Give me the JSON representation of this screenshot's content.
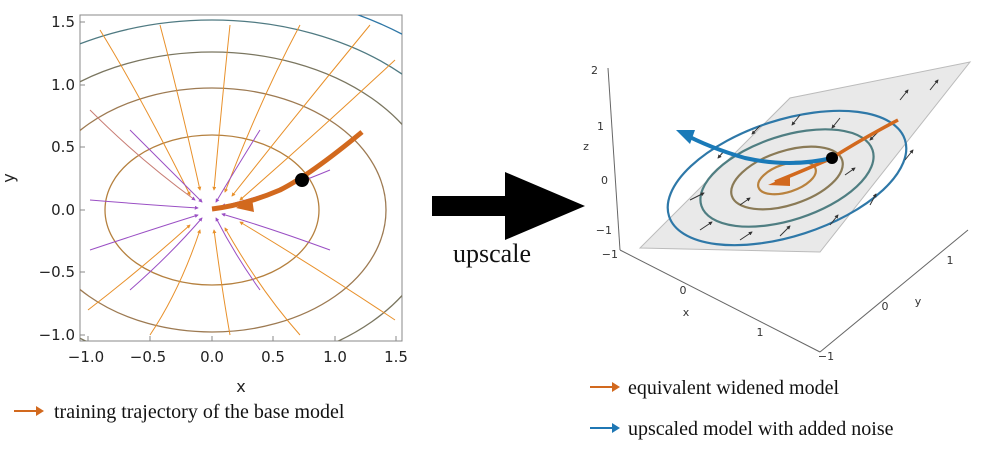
{
  "left_plot": {
    "x_label": "x",
    "y_label": "y",
    "x_ticks": [
      "−1.0",
      "−0.5",
      "0.0",
      "0.5",
      "1.0",
      "1.5"
    ],
    "y_ticks": [
      "1.5",
      "1.0",
      "0.5",
      "0.0",
      "−0.5",
      "−1.0"
    ]
  },
  "arrow_label": "upscale",
  "right_plot": {
    "z_label": "z",
    "x_label": "x",
    "y_label": "y",
    "z_ticks": [
      "2",
      "1",
      "0",
      "−1"
    ],
    "x_ticks": [
      "−1",
      "0",
      "1"
    ],
    "y_ticks": [
      "1",
      "0",
      "−1"
    ]
  },
  "legend": {
    "left_item": "training trajectory of the base model",
    "right_item1": "equivalent widened model",
    "right_item2": "upscaled model with added noise"
  },
  "colors": {
    "trajectory_orange": "#d2691e",
    "noise_blue": "#1f77b4",
    "marker": "#000000"
  }
}
